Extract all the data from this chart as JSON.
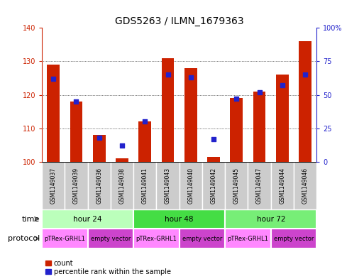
{
  "title": "GDS5263 / ILMN_1679363",
  "samples": [
    "GSM1149037",
    "GSM1149039",
    "GSM1149036",
    "GSM1149038",
    "GSM1149041",
    "GSM1149043",
    "GSM1149040",
    "GSM1149042",
    "GSM1149045",
    "GSM1149047",
    "GSM1149044",
    "GSM1149046"
  ],
  "count_values": [
    129.0,
    118.0,
    108.0,
    101.0,
    112.0,
    131.0,
    128.0,
    101.5,
    119.0,
    121.0,
    126.0,
    136.0
  ],
  "percentile_values": [
    62,
    45,
    18,
    12,
    30,
    65,
    63,
    17,
    47,
    52,
    57,
    65
  ],
  "ylim_left": [
    100,
    140
  ],
  "ylim_right": [
    0,
    100
  ],
  "yticks_left": [
    100,
    110,
    120,
    130,
    140
  ],
  "yticks_right": [
    0,
    25,
    50,
    75,
    100
  ],
  "bar_color": "#CC2200",
  "dot_color": "#2222CC",
  "sample_box_color": "#CCCCCC",
  "time_groups": [
    {
      "label": "hour 24",
      "start": 0,
      "end": 4,
      "color": "#BBFFBB"
    },
    {
      "label": "hour 48",
      "start": 4,
      "end": 8,
      "color": "#44DD44"
    },
    {
      "label": "hour 72",
      "start": 8,
      "end": 12,
      "color": "#77EE77"
    }
  ],
  "protocol_groups": [
    {
      "label": "pTRex-GRHL1",
      "start": 0,
      "end": 2,
      "color": "#FF88FF"
    },
    {
      "label": "empty vector",
      "start": 2,
      "end": 4,
      "color": "#CC44CC"
    },
    {
      "label": "pTRex-GRHL1",
      "start": 4,
      "end": 6,
      "color": "#FF88FF"
    },
    {
      "label": "empty vector",
      "start": 6,
      "end": 8,
      "color": "#CC44CC"
    },
    {
      "label": "pTRex-GRHL1",
      "start": 8,
      "end": 10,
      "color": "#FF88FF"
    },
    {
      "label": "empty vector",
      "start": 10,
      "end": 12,
      "color": "#CC44CC"
    }
  ],
  "time_label": "time",
  "protocol_label": "protocol",
  "legend_count": "count",
  "legend_percentile": "percentile rank within the sample",
  "title_fontsize": 10,
  "tick_fontsize": 7,
  "sample_fontsize": 5.5,
  "annotation_fontsize": 7.5,
  "protocol_fontsize": 6.0,
  "label_fontsize": 8
}
